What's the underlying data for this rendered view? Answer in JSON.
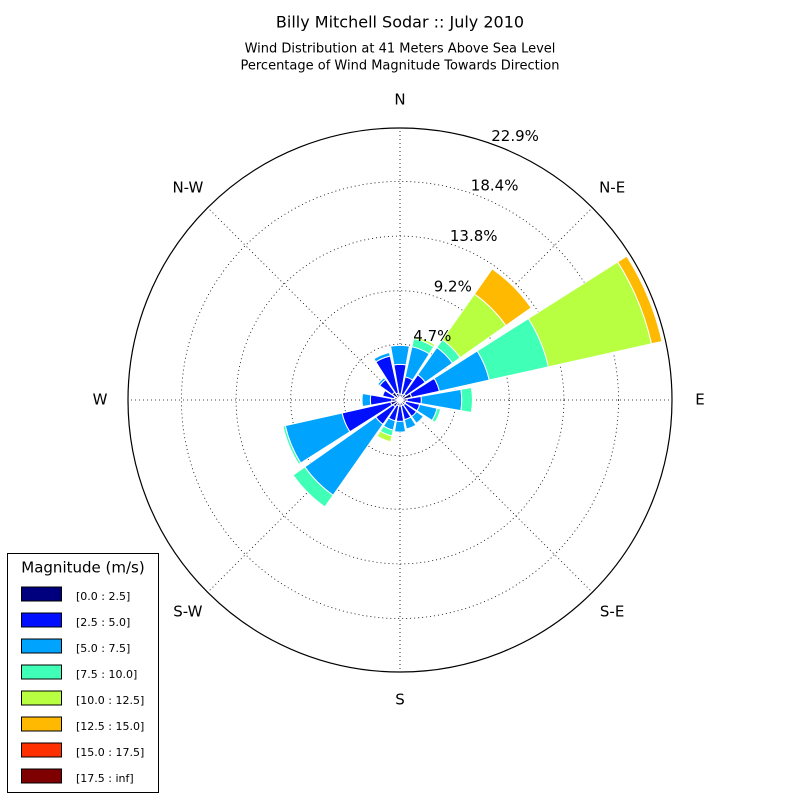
{
  "chart_data": {
    "type": "windrose",
    "title": "Billy Mitchell Sodar :: July 2010",
    "subtitle": [
      "Wind Distribution at 41 Meters Above Sea Level",
      "Percentage of Wind Magnitude Towards Direction"
    ],
    "categories": [
      "N",
      null,
      "N-E",
      null,
      "E",
      null,
      "S-E",
      null,
      "S",
      null,
      "S-W",
      null,
      "W",
      null,
      "N-W",
      null
    ],
    "ylim": [
      0,
      22.9
    ],
    "yticks": [
      {
        "value": 4.7,
        "label": "4.7%"
      },
      {
        "value": 9.2,
        "label": "9.2%"
      },
      {
        "value": 13.8,
        "label": "13.8%"
      },
      {
        "value": 18.4,
        "label": "18.4%"
      },
      {
        "value": 22.9,
        "label": "22.9%"
      }
    ],
    "grid": true,
    "legend_title": "Magnitude (m/s)",
    "legend_position": "lower-left",
    "series": [
      {
        "name": "[0.0 : 2.5]",
        "color": "#00007f",
        "values": [
          0.5,
          0.5,
          0.6,
          1.0,
          0.6,
          0.5,
          0.5,
          0.5,
          0.5,
          0.5,
          0.7,
          0.8,
          0.7,
          0.5,
          0.8,
          0.6
        ]
      },
      {
        "name": "[2.5 : 5.0]",
        "color": "#0010ff",
        "values": [
          2.5,
          1.5,
          2.0,
          2.4,
          1.2,
          1.2,
          1.2,
          1.2,
          1.3,
          1.3,
          1.8,
          4.2,
          1.8,
          1.0,
          1.3,
          3.2
        ]
      },
      {
        "name": "[5.0 : 7.5]",
        "color": "#00a4ff",
        "values": [
          1.6,
          2.6,
          2.8,
          4.3,
          3.4,
          1.5,
          0.7,
          0.8,
          0.9,
          0.8,
          7.3,
          4.9,
          0.7,
          0,
          0.2,
          0.3
        ]
      },
      {
        "name": "[7.5 : 10.0]",
        "color": "#40ffb7",
        "values": [
          0,
          0.7,
          0.8,
          5.1,
          0.9,
          0.3,
          0,
          0,
          0,
          0.5,
          1.2,
          0.2,
          0,
          0,
          0,
          0
        ]
      },
      {
        "name": "[10.0 : 12.5]",
        "color": "#b7ff40",
        "values": [
          0,
          0.2,
          4.7,
          8.9,
          0,
          0,
          0,
          0,
          0,
          0.5,
          0,
          0,
          0,
          0,
          0,
          0
        ]
      },
      {
        "name": "[12.5 : 15.0]",
        "color": "#ffb900",
        "values": [
          0,
          0,
          2.6,
          0.9,
          0,
          0,
          0,
          0,
          0,
          0,
          0,
          0,
          0,
          0,
          0,
          0
        ]
      },
      {
        "name": "[15.0 : 17.5]",
        "color": "#ff3000",
        "values": [
          0,
          0,
          0,
          0,
          0,
          0,
          0,
          0,
          0,
          0,
          0,
          0,
          0,
          0,
          0,
          0
        ]
      },
      {
        "name": "[17.5 : inf]",
        "color": "#7f0000",
        "values": [
          0,
          0,
          0,
          0,
          0,
          0,
          0,
          0,
          0,
          0,
          0,
          0,
          0,
          0,
          0,
          0
        ]
      }
    ]
  }
}
